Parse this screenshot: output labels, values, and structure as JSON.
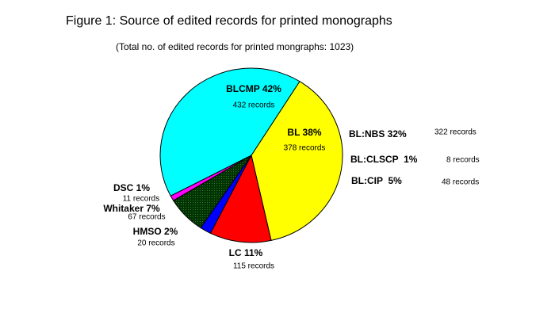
{
  "chart_data": {
    "type": "pie",
    "title": "Figure 1: Source of edited records for printed monographs",
    "subtitle": "(Total no. of edited records for printed mongraphs: 1023)",
    "values": [
      38,
      11,
      2,
      7,
      1,
      42
    ],
    "value_labels": [
      "BL 38%",
      "LC 11%",
      "HMSO 2%",
      "Whitaker 7%",
      "DSC 1%",
      "BLCMP 42%"
    ],
    "record_labels": [
      "378 records",
      "115 records",
      "20 records",
      "67 records",
      "11 records",
      "432 records"
    ],
    "colors": [
      "#ffff00",
      "#ff0000",
      "#0000ff",
      "#003300",
      "#ff00ff",
      "#00ffff"
    ],
    "breakdown": {
      "labels": [
        "BL:NBS 32%",
        "BL:CLSCP  1%",
        "BL:CIP  5%"
      ],
      "record_labels": [
        "322 records",
        "8 records",
        "48 records"
      ]
    }
  }
}
